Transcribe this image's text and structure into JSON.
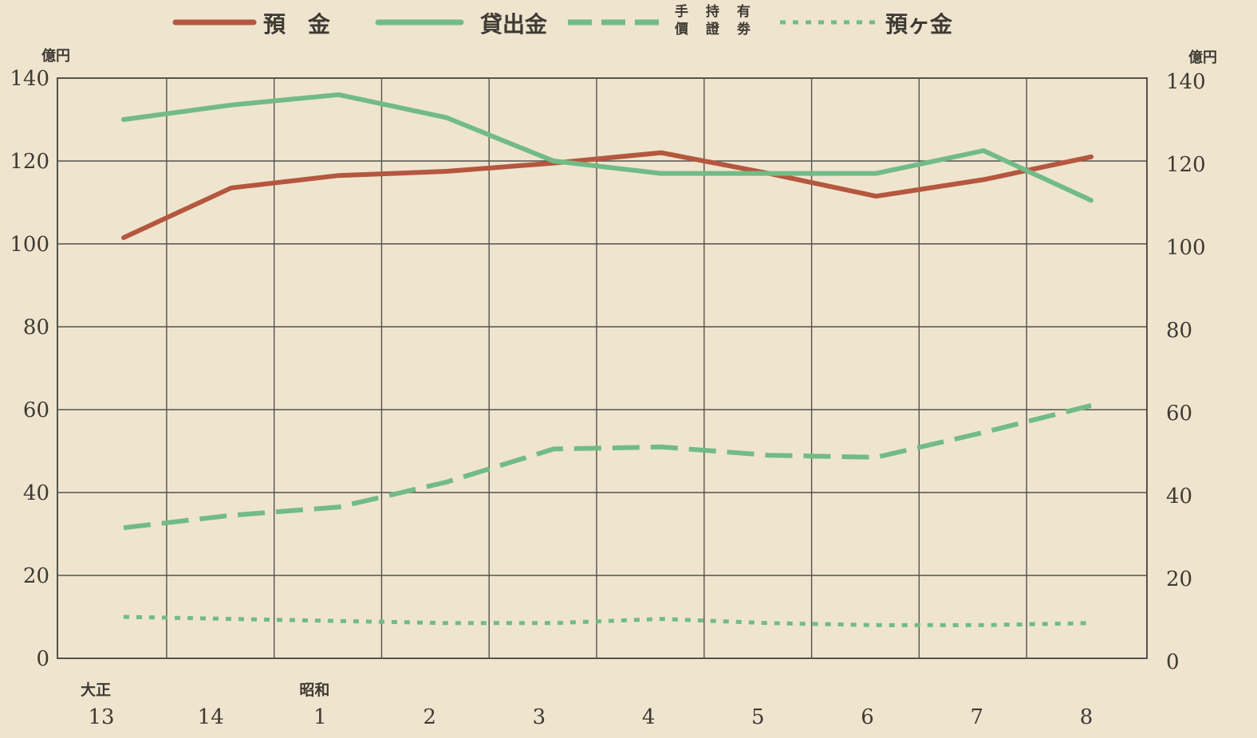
{
  "chart_data": {
    "type": "line",
    "x": [
      "13",
      "14",
      "1",
      "2",
      "3",
      "4",
      "5",
      "6",
      "7",
      "8"
    ],
    "x_era_labels": [
      {
        "label": "大正",
        "at": "13"
      },
      {
        "label": "昭和",
        "at": "1"
      }
    ],
    "ylabel_left": "億円",
    "ylabel_right": "億円",
    "ylim": [
      0,
      140
    ],
    "yticks": [
      0,
      20,
      40,
      60,
      80,
      100,
      120,
      140
    ],
    "grid": true,
    "legend_position": "top",
    "series": [
      {
        "name": "預　金",
        "style": "solid",
        "color": "#b5573f",
        "values": [
          101.5,
          113.5,
          116.5,
          117.5,
          119.5,
          122,
          117,
          111.5,
          115.5,
          121
        ]
      },
      {
        "name": "貸出金",
        "style": "solid",
        "color": "#72bb86",
        "values": [
          130,
          133.5,
          136,
          130.5,
          120,
          117,
          117,
          117,
          122.5,
          110.5
        ]
      },
      {
        "name_lines": [
          "手 持 有",
          "價 證 劵"
        ],
        "style": "dashed",
        "color": "#72bb86",
        "values": [
          31.5,
          34.5,
          36.5,
          42.5,
          50.5,
          51,
          49,
          48.5,
          54.5,
          61
        ]
      },
      {
        "name": "預ヶ金",
        "style": "dotted",
        "color": "#72bb86",
        "values": [
          10,
          9.5,
          9,
          8.5,
          8.5,
          9.5,
          8.5,
          8,
          8,
          8.5
        ]
      }
    ]
  }
}
